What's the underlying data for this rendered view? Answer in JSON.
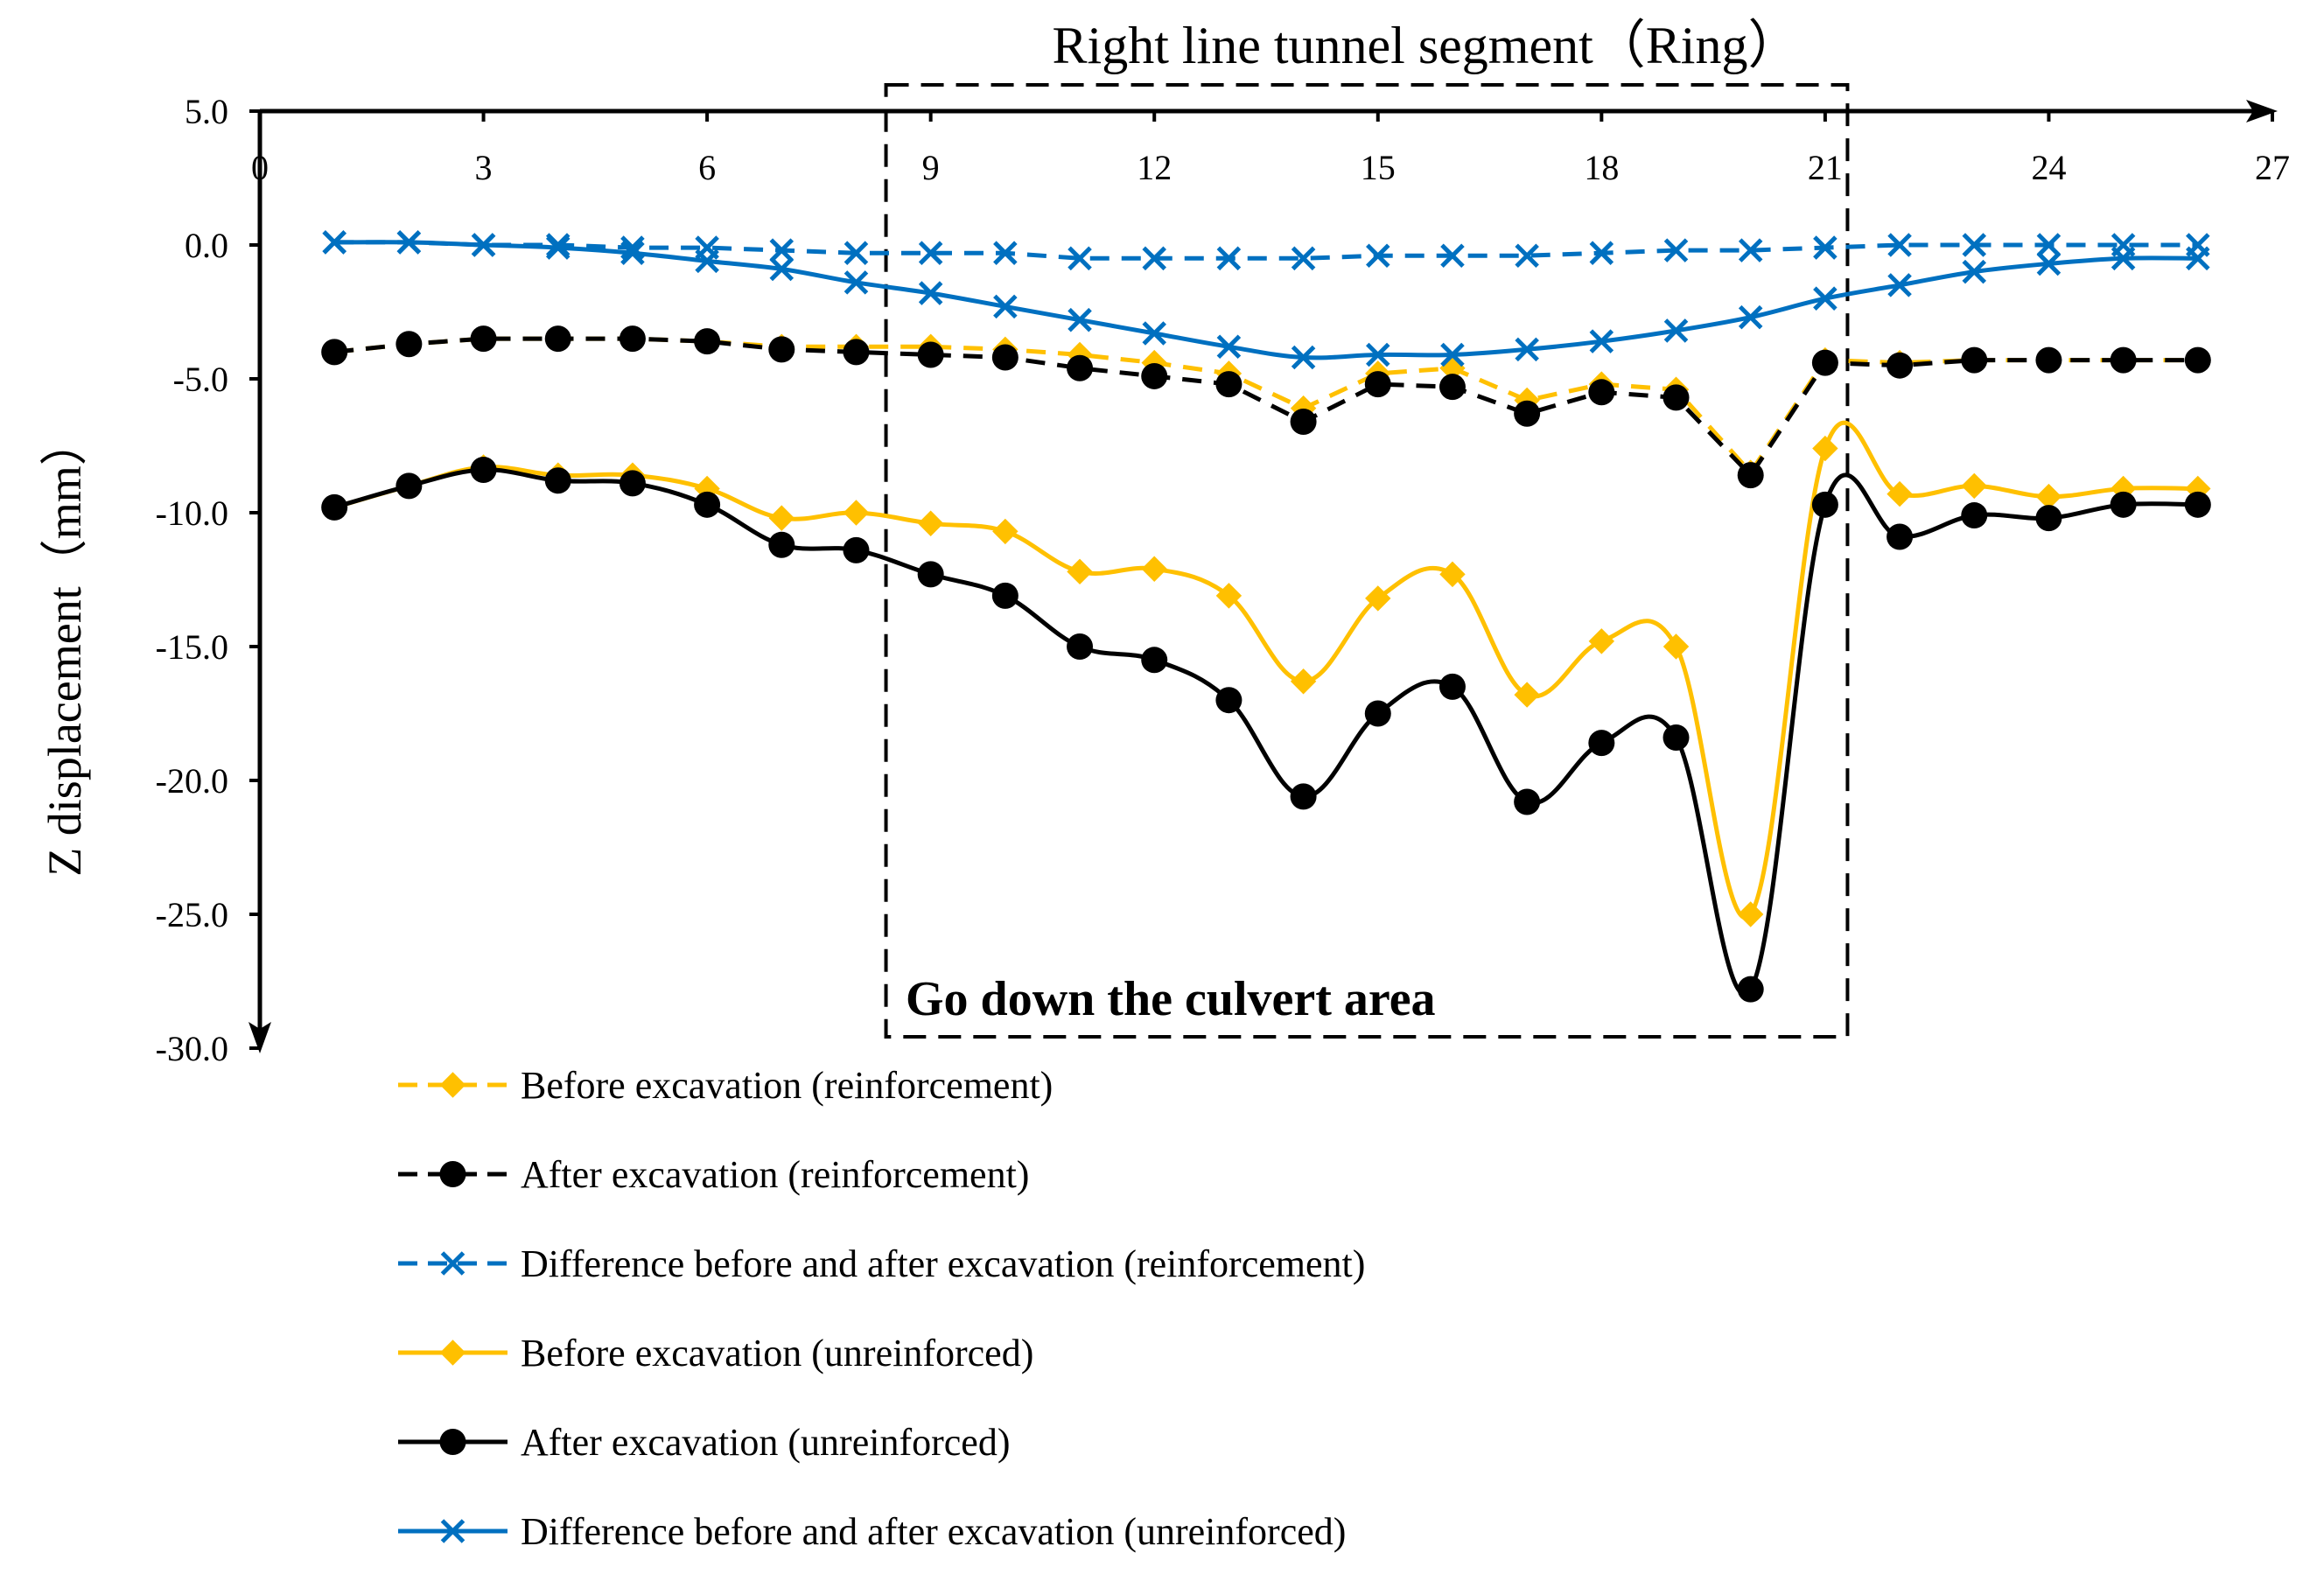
{
  "chart_data": {
    "type": "line",
    "title": "Right line tunnel segment（Ring）",
    "xlabel": "",
    "ylabel": "Z displacement（mm）",
    "xlim": [
      0,
      27
    ],
    "ylim": [
      -30,
      5
    ],
    "xticks": [
      0,
      3,
      6,
      9,
      12,
      15,
      18,
      21,
      24,
      27
    ],
    "yticks": [
      5,
      0,
      -5,
      -10,
      -15,
      -20,
      -25,
      -30
    ],
    "ytick_labels": [
      "5.0",
      "0.0",
      "-5.0",
      "-10.0",
      "-15.0",
      "-20.0",
      "-25.0",
      "-30.0"
    ],
    "annotation": "Go down the culvert area",
    "highlight_region_x": [
      8.4,
      21.3
    ],
    "x": [
      1,
      2,
      3,
      4,
      5,
      6,
      7,
      8,
      9,
      10,
      11,
      12,
      13,
      14,
      15,
      16,
      17,
      18,
      19,
      20,
      21,
      22,
      23,
      24,
      25,
      26
    ],
    "series": [
      {
        "name": "Before excavation (reinforcement)",
        "color": "#FFC000",
        "dash": true,
        "marker": "diamond",
        "smooth": false,
        "values": [
          -4.0,
          -3.7,
          -3.5,
          -3.5,
          -3.5,
          -3.6,
          -3.8,
          -3.8,
          -3.8,
          -3.9,
          -4.1,
          -4.4,
          -4.8,
          -6.1,
          -4.8,
          -4.6,
          -5.8,
          -5.2,
          -5.4,
          -8.5,
          -4.3,
          -4.4,
          -4.3,
          -4.3,
          -4.3,
          -4.3
        ]
      },
      {
        "name": "After excavation (reinforcement)",
        "color": "#000000",
        "dash": true,
        "marker": "circle",
        "smooth": false,
        "values": [
          -4.0,
          -3.7,
          -3.5,
          -3.5,
          -3.5,
          -3.6,
          -3.9,
          -4.0,
          -4.1,
          -4.2,
          -4.6,
          -4.9,
          -5.2,
          -6.6,
          -5.2,
          -5.3,
          -6.3,
          -5.5,
          -5.7,
          -8.6,
          -4.4,
          -4.5,
          -4.3,
          -4.3,
          -4.3,
          -4.3
        ]
      },
      {
        "name": "Difference before and after excavation (reinforcement)",
        "color": "#0070C0",
        "dash": true,
        "marker": "x",
        "smooth": false,
        "values": [
          0.1,
          0.1,
          0.0,
          0.0,
          -0.1,
          -0.1,
          -0.2,
          -0.3,
          -0.3,
          -0.3,
          -0.5,
          -0.5,
          -0.5,
          -0.5,
          -0.4,
          -0.4,
          -0.4,
          -0.3,
          -0.2,
          -0.2,
          -0.1,
          0.0,
          0.0,
          0.0,
          0.0,
          0.0
        ]
      },
      {
        "name": "Before excavation (unreinforced)",
        "color": "#FFC000",
        "dash": false,
        "marker": "diamond",
        "smooth": true,
        "values": [
          -9.8,
          -9.0,
          -8.3,
          -8.6,
          -8.6,
          -9.1,
          -10.2,
          -10.0,
          -10.4,
          -10.7,
          -12.2,
          -12.1,
          -13.1,
          -16.3,
          -13.2,
          -12.3,
          -16.8,
          -14.8,
          -15.0,
          -25.0,
          -7.6,
          -9.3,
          -9.0,
          -9.4,
          -9.1,
          -9.1
        ]
      },
      {
        "name": "After excavation (unreinforced)",
        "color": "#000000",
        "dash": false,
        "marker": "circle",
        "smooth": true,
        "values": [
          -9.8,
          -9.0,
          -8.4,
          -8.8,
          -8.9,
          -9.7,
          -11.2,
          -11.4,
          -12.3,
          -13.1,
          -15.0,
          -15.5,
          -17.0,
          -20.6,
          -17.5,
          -16.5,
          -20.8,
          -18.6,
          -18.4,
          -27.8,
          -9.7,
          -10.9,
          -10.1,
          -10.2,
          -9.7,
          -9.7
        ]
      },
      {
        "name": "Difference before and after excavation (unreinforced)",
        "color": "#0070C0",
        "dash": false,
        "marker": "x",
        "smooth": true,
        "values": [
          0.1,
          0.1,
          0.0,
          -0.1,
          -0.3,
          -0.6,
          -0.9,
          -1.4,
          -1.8,
          -2.3,
          -2.8,
          -3.3,
          -3.8,
          -4.2,
          -4.1,
          -4.1,
          -3.9,
          -3.6,
          -3.2,
          -2.7,
          -2.0,
          -1.5,
          -1.0,
          -0.7,
          -0.5,
          -0.5
        ]
      }
    ]
  }
}
